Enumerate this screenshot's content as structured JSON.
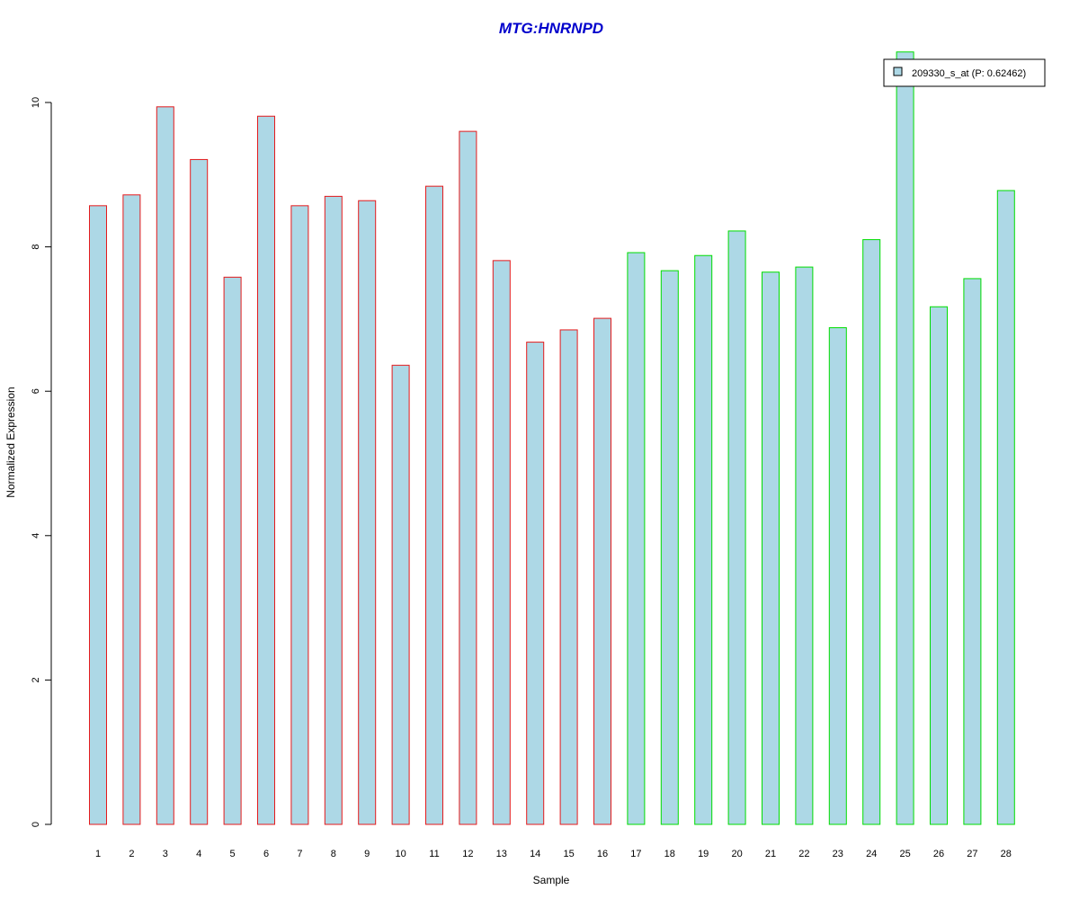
{
  "chart_data": {
    "type": "bar",
    "title": "MTG:HNRNPD",
    "xlabel": "Sample",
    "ylabel": "Normalized Expression",
    "categories": [
      "1",
      "2",
      "3",
      "4",
      "5",
      "6",
      "7",
      "8",
      "9",
      "10",
      "11",
      "12",
      "13",
      "14",
      "15",
      "16",
      "17",
      "18",
      "19",
      "20",
      "21",
      "22",
      "23",
      "24",
      "25",
      "26",
      "27",
      "28"
    ],
    "series": [
      {
        "name": "209330_s_at (P: 0.62462)",
        "values": [
          8.57,
          8.72,
          9.94,
          9.21,
          7.58,
          9.81,
          8.57,
          8.7,
          8.64,
          6.36,
          8.84,
          9.6,
          7.81,
          6.68,
          6.85,
          7.01,
          7.92,
          7.67,
          7.88,
          8.22,
          7.65,
          7.72,
          6.88,
          8.1,
          10.7,
          7.17,
          7.56,
          8.78
        ]
      }
    ],
    "border_colors": [
      "#e41a1c",
      "#e41a1c",
      "#e41a1c",
      "#e41a1c",
      "#e41a1c",
      "#e41a1c",
      "#e41a1c",
      "#e41a1c",
      "#e41a1c",
      "#e41a1c",
      "#e41a1c",
      "#e41a1c",
      "#e41a1c",
      "#e41a1c",
      "#e41a1c",
      "#e41a1c",
      "#00dd00",
      "#00dd00",
      "#00dd00",
      "#00dd00",
      "#00dd00",
      "#00dd00",
      "#00dd00",
      "#00dd00",
      "#00dd00",
      "#00dd00",
      "#00dd00",
      "#00dd00"
    ],
    "fill_color": "#add8e6",
    "title_color": "#0000cc",
    "ylim": [
      0,
      10.7
    ],
    "yticks": [
      0,
      2,
      4,
      6,
      8,
      10
    ],
    "legend_position": "top-right",
    "grid": false
  }
}
